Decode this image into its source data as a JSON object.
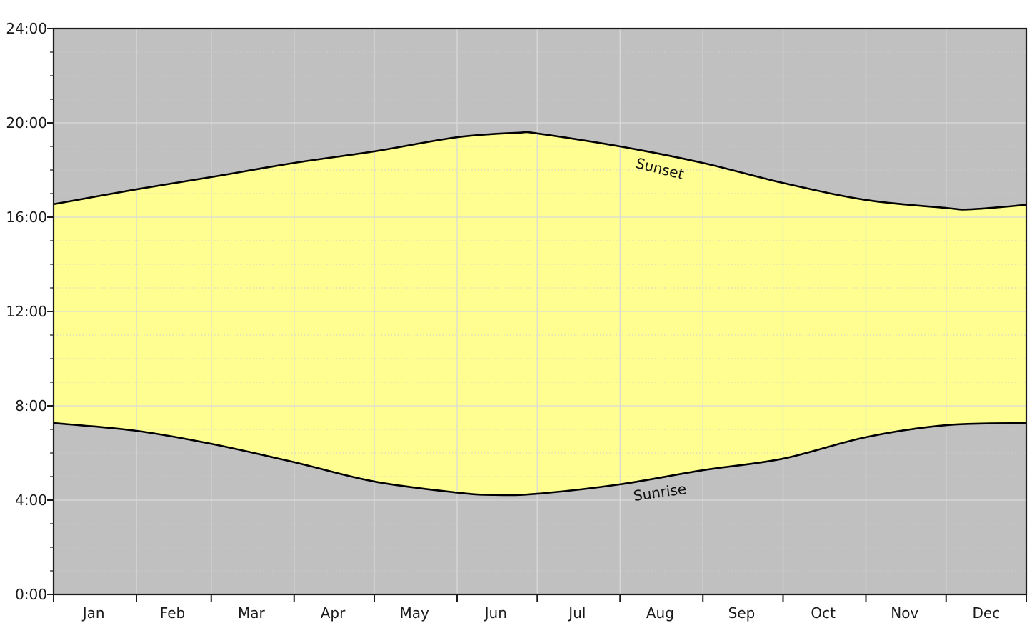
{
  "chart_data": {
    "type": "area",
    "title": "",
    "description": "Annual sunrise and sunset times chart; yellow band is daylight between the sunrise and sunset curves, gray areas are night",
    "x_axis": {
      "unit": "month",
      "range_days": [
        1,
        365
      ],
      "months": [
        {
          "label": "Jan",
          "days": 31
        },
        {
          "label": "Feb",
          "days": 28
        },
        {
          "label": "Mar",
          "days": 31
        },
        {
          "label": "Apr",
          "days": 30
        },
        {
          "label": "May",
          "days": 31
        },
        {
          "label": "Jun",
          "days": 30
        },
        {
          "label": "Jul",
          "days": 31
        },
        {
          "label": "Aug",
          "days": 31
        },
        {
          "label": "Sep",
          "days": 30
        },
        {
          "label": "Oct",
          "days": 31
        },
        {
          "label": "Nov",
          "days": 30
        },
        {
          "label": "Dec",
          "days": 31
        }
      ]
    },
    "y_axis": {
      "ylim_hours": [
        0,
        24
      ],
      "major_step_hours": 4,
      "minor_step_hours": 1,
      "ticks": [
        {
          "label": "0:00",
          "hour": 0
        },
        {
          "label": "4:00",
          "hour": 4
        },
        {
          "label": "8:00",
          "hour": 8
        },
        {
          "label": "12:00",
          "hour": 12
        },
        {
          "label": "16:00",
          "hour": 16
        },
        {
          "label": "20:00",
          "hour": 20
        },
        {
          "label": "24:00",
          "hour": 24
        }
      ]
    },
    "series": [
      {
        "name": "Sunset",
        "label_pos": {
          "day": 228,
          "hour": 18.05,
          "rotation_deg": 14
        },
        "points": [
          {
            "day": 1,
            "hour": 16.55,
            "time": "16:33"
          },
          {
            "day": 32,
            "hour": 17.18,
            "time": "17:11"
          },
          {
            "day": 60,
            "hour": 17.7,
            "time": "17:42"
          },
          {
            "day": 91,
            "hour": 18.3,
            "time": "18:18"
          },
          {
            "day": 121,
            "hour": 18.79,
            "time": "18:47"
          },
          {
            "day": 152,
            "hour": 19.39,
            "time": "19:23"
          },
          {
            "day": 175,
            "hour": 19.58,
            "time": "19:35"
          },
          {
            "day": 182,
            "hour": 19.55,
            "time": "19:33"
          },
          {
            "day": 213,
            "hour": 19.0,
            "time": "19:00"
          },
          {
            "day": 244,
            "hour": 18.3,
            "time": "18:18"
          },
          {
            "day": 274,
            "hour": 17.45,
            "time": "17:27"
          },
          {
            "day": 305,
            "hour": 16.73,
            "time": "16:44"
          },
          {
            "day": 335,
            "hour": 16.39,
            "time": "16:23"
          },
          {
            "day": 344,
            "hour": 16.33,
            "time": "16:20"
          },
          {
            "day": 365,
            "hour": 16.52,
            "time": "16:31"
          }
        ]
      },
      {
        "name": "Sunrise",
        "label_pos": {
          "day": 228,
          "hour": 4.33,
          "rotation_deg": -8
        },
        "points": [
          {
            "day": 1,
            "hour": 7.27,
            "time": "7:16"
          },
          {
            "day": 32,
            "hour": 6.94,
            "time": "6:56"
          },
          {
            "day": 60,
            "hour": 6.39,
            "time": "6:23"
          },
          {
            "day": 91,
            "hour": 5.61,
            "time": "5:37"
          },
          {
            "day": 121,
            "hour": 4.79,
            "time": "4:47"
          },
          {
            "day": 152,
            "hour": 4.32,
            "time": "4:19"
          },
          {
            "day": 166,
            "hour": 4.22,
            "time": "4:13"
          },
          {
            "day": 182,
            "hour": 4.27,
            "time": "4:16"
          },
          {
            "day": 213,
            "hour": 4.67,
            "time": "4:40"
          },
          {
            "day": 244,
            "hour": 5.27,
            "time": "5:16"
          },
          {
            "day": 274,
            "hour": 5.76,
            "time": "5:46"
          },
          {
            "day": 305,
            "hour": 6.67,
            "time": "6:40"
          },
          {
            "day": 335,
            "hour": 7.18,
            "time": "7:11"
          },
          {
            "day": 365,
            "hour": 7.27,
            "time": "7:16"
          }
        ]
      }
    ],
    "colors": {
      "daylight_fill": "#feff90",
      "night_fill": "#c0c0c0",
      "curve_line": "#000000",
      "grid_major": "#d9d9d9",
      "grid_minor": "#ccccd8",
      "axis_spine": "#1a1a1a",
      "background": "#ffffff"
    },
    "legend": "inline curve labels"
  }
}
